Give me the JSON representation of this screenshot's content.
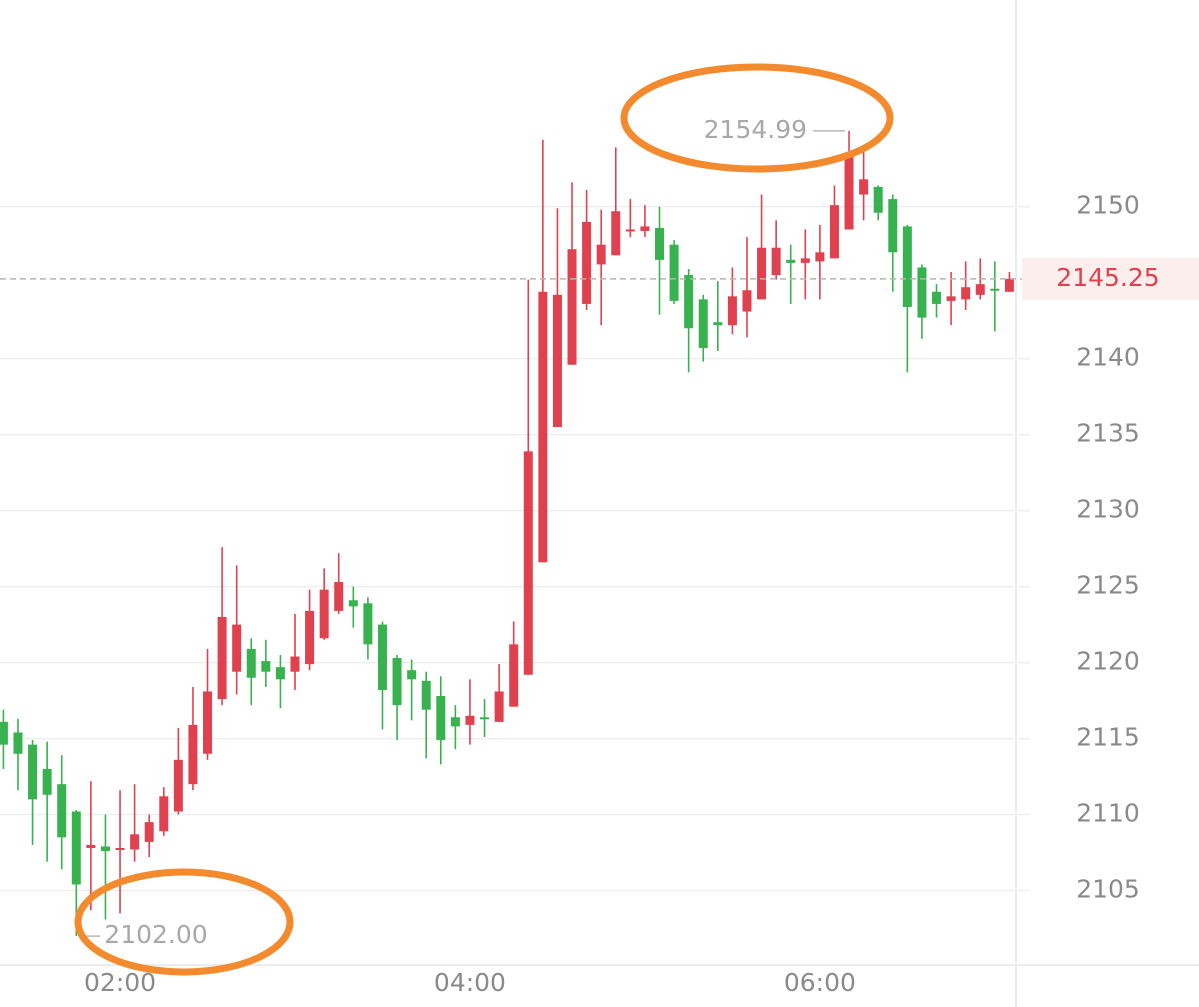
{
  "chart_data": {
    "type": "candlestick",
    "categories": [
      null,
      null,
      null,
      null,
      null,
      null,
      null,
      null,
      "02:00",
      null,
      null,
      null,
      null,
      null,
      null,
      null,
      null,
      null,
      null,
      null,
      null,
      null,
      null,
      null,
      null,
      null,
      null,
      null,
      null,
      null,
      null,
      null,
      "04:00",
      null,
      null,
      null,
      null,
      null,
      null,
      null,
      null,
      null,
      null,
      null,
      null,
      null,
      null,
      null,
      null,
      null,
      null,
      null,
      null,
      null,
      null,
      null,
      "06:00",
      null,
      null,
      null,
      null,
      null,
      null,
      null,
      null,
      null,
      null,
      null,
      null,
      null
    ],
    "open": [
      2116.1,
      2115.4,
      2114.6,
      2113.0,
      2112.0,
      2110.2,
      2107.8,
      2107.9,
      2107.7,
      2107.7,
      2108.2,
      2108.9,
      2110.2,
      2112.0,
      2114.0,
      2117.6,
      2119.4,
      2120.9,
      2120.1,
      2119.7,
      2119.4,
      2119.9,
      2121.6,
      2123.4,
      2124.1,
      2123.9,
      2122.5,
      2120.3,
      2119.5,
      2118.8,
      2117.8,
      2116.4,
      2115.9,
      2116.4,
      2116.1,
      2117.1,
      2119.2,
      2126.6,
      2135.5,
      2139.6,
      2143.6,
      2146.2,
      2146.8,
      2148.4,
      2148.4,
      2148.6,
      2147.5,
      2145.5,
      2143.9,
      2142.4,
      2142.2,
      2143.1,
      2143.9,
      2145.5,
      2146.5,
      2146.3,
      2146.4,
      2146.6,
      2148.5,
      2150.8,
      2151.3,
      2150.5,
      2148.7,
      2146.0,
      2144.4,
      2143.8,
      2143.9,
      2144.2,
      2144.6,
      2144.4
    ],
    "high": [
      2116.9,
      2116.3,
      2114.9,
      2114.8,
      2113.9,
      2110.3,
      2112.2,
      2110.0,
      2111.6,
      2112.0,
      2110.0,
      2111.8,
      2115.7,
      2118.4,
      2120.9,
      2127.6,
      2126.4,
      2121.6,
      2121.5,
      2120.5,
      2123.2,
      2124.8,
      2126.2,
      2127.2,
      2125.0,
      2124.3,
      2122.7,
      2120.5,
      2120.2,
      2119.4,
      2119.1,
      2117.2,
      2118.9,
      2117.6,
      2119.9,
      2122.7,
      2145.2,
      2154.4,
      2149.9,
      2151.6,
      2151.1,
      2149.8,
      2153.9,
      2150.5,
      2150.1,
      2150.0,
      2147.8,
      2145.9,
      2144.2,
      2145.1,
      2146.0,
      2148.0,
      2150.8,
      2149.1,
      2147.5,
      2148.5,
      2148.8,
      2151.4,
      2154.99,
      2153.9,
      2151.4,
      2150.8,
      2148.8,
      2146.2,
      2144.9,
      2145.7,
      2146.4,
      2146.6,
      2146.4,
      2145.7
    ],
    "low": [
      2113.0,
      2111.6,
      2108.0,
      2106.9,
      2106.4,
      2102.0,
      2103.7,
      2103.1,
      2103.5,
      2106.9,
      2107.2,
      2108.6,
      2110.0,
      2111.6,
      2113.6,
      2117.2,
      2117.9,
      2117.2,
      2118.4,
      2117.0,
      2118.2,
      2119.5,
      2121.5,
      2123.2,
      2122.3,
      2120.2,
      2115.6,
      2114.9,
      2116.2,
      2113.7,
      2113.3,
      2114.3,
      2114.6,
      2115.1,
      2116.1,
      2117.1,
      2119.2,
      2126.6,
      2135.5,
      2139.6,
      2143.2,
      2142.2,
      2146.8,
      2148.0,
      2148.0,
      2142.9,
      2143.6,
      2139.1,
      2139.8,
      2140.5,
      2141.6,
      2141.4,
      2143.9,
      2145.2,
      2143.6,
      2143.9,
      2143.9,
      2146.6,
      2148.5,
      2149.1,
      2149.1,
      2144.4,
      2139.1,
      2141.3,
      2142.7,
      2142.2,
      2143.2,
      2143.9,
      2141.8,
      2144.4
    ],
    "close": [
      2114.6,
      2114.0,
      2111.0,
      2111.3,
      2108.5,
      2105.4,
      2108.0,
      2107.6,
      2107.8,
      2108.7,
      2109.5,
      2111.2,
      2113.6,
      2115.9,
      2118.1,
      2123.0,
      2122.5,
      2119.0,
      2119.4,
      2118.9,
      2120.4,
      2123.4,
      2124.8,
      2125.3,
      2123.7,
      2121.2,
      2118.2,
      2117.2,
      2118.9,
      2116.9,
      2114.9,
      2115.8,
      2116.5,
      2116.3,
      2118.1,
      2121.2,
      2133.9,
      2144.4,
      2144.2,
      2147.2,
      2149.0,
      2147.5,
      2149.7,
      2148.5,
      2148.7,
      2146.5,
      2143.8,
      2142.0,
      2140.7,
      2142.2,
      2144.1,
      2144.5,
      2147.3,
      2147.3,
      2146.3,
      2146.6,
      2147.0,
      2150.1,
      2153.4,
      2151.8,
      2149.6,
      2147.0,
      2143.4,
      2142.7,
      2143.6,
      2144.1,
      2144.7,
      2144.9,
      2144.5,
      2145.25
    ],
    "up_color": "#e0414f",
    "down_color": "#38b14f",
    "ylim": [
      2100.1,
      2163.6
    ],
    "yticks": [
      2105,
      2110,
      2115,
      2120,
      2125,
      2130,
      2135,
      2140,
      2150
    ],
    "grid": true,
    "last_price": 2145.25,
    "max_label": 2154.99,
    "min_label": {
      "value": 2102,
      "label": "2102.00"
    }
  }
}
